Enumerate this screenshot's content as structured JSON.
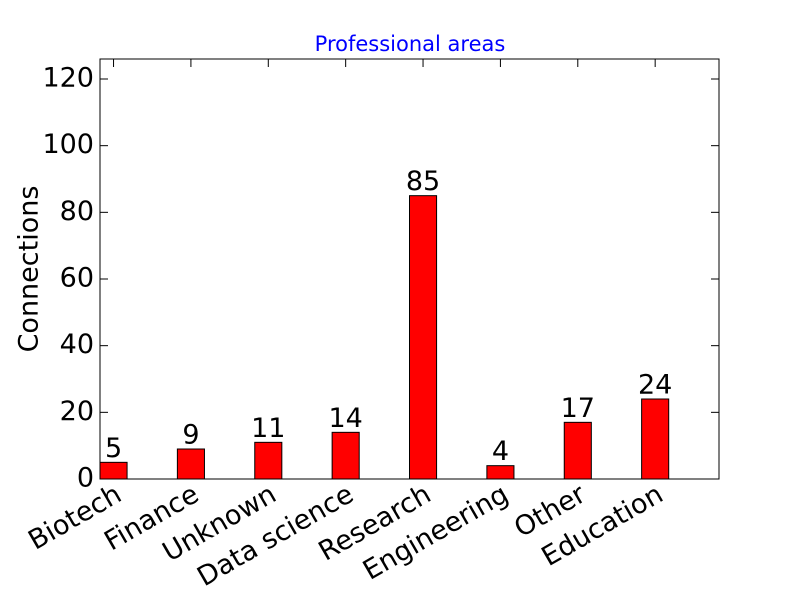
{
  "chart_data": {
    "type": "bar",
    "title": "Professional areas",
    "y_label": "Connections",
    "categories": [
      "Biotech",
      "Finance",
      "Unknown",
      "Data science",
      "Research",
      "Engineering",
      "Other",
      "Education"
    ],
    "values": [
      5,
      9,
      11,
      14,
      85,
      4,
      17,
      24
    ],
    "color": "#ff0000",
    "ylim": [
      0,
      126
    ],
    "yticks": [
      0,
      20,
      40,
      60,
      80,
      100,
      120
    ],
    "grid": false
  }
}
